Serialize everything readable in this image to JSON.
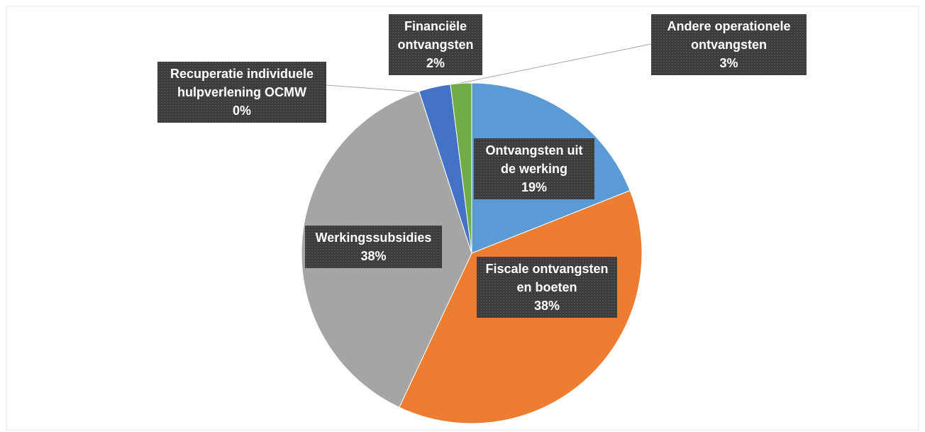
{
  "chart_data": {
    "type": "pie",
    "categories": [
      "Ontvangsten uit de werking",
      "Fiscale ontvangsten en boeten",
      "Werkingssubsidies",
      "Recuperatie individuele hulpverlening OCMW",
      "Andere operationele ontvangsten",
      "Financiële ontvangsten"
    ],
    "values": [
      19,
      38,
      38,
      0,
      3,
      2
    ],
    "value_labels": [
      "19%",
      "38%",
      "38%",
      "0%",
      "3%",
      "2%"
    ],
    "colors": [
      "#5b9bd5",
      "#ed7d31",
      "#a5a5a5",
      "#ffc000",
      "#4472c4",
      "#70ad47"
    ]
  }
}
